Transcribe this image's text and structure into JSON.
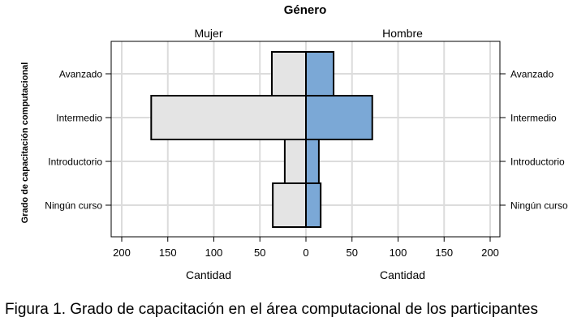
{
  "chart_data": {
    "type": "bar",
    "orientation": "horizontal",
    "layout": "population-pyramid",
    "title": "Género",
    "ylabel": "Grado de capacitación computacional",
    "categories": [
      "Avanzado",
      "Intermedio",
      "Introductorio",
      "Ningún curso"
    ],
    "series": [
      {
        "name": "Mujer",
        "values": [
          37,
          168,
          23,
          36
        ],
        "color": "#e4e4e4",
        "xlabel": "Cantidad"
      },
      {
        "name": "Hombre",
        "values": [
          30,
          72,
          14,
          16
        ],
        "color": "#7ba8d6",
        "xlabel": "Cantidad"
      }
    ],
    "xlim": [
      0,
      210
    ],
    "xticks": [
      "200",
      "150",
      "100",
      "50",
      "0",
      "50",
      "100",
      "150",
      "200"
    ],
    "grid": true,
    "legend": "none"
  },
  "caption": "Figura 1. Grado de capacitación en el área computacional de los participantes"
}
